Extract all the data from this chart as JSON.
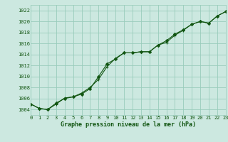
{
  "xlabel": "Graphe pression niveau de la mer (hPa)",
  "background_color": "#cce8e0",
  "grid_color": "#99ccbb",
  "line_color": "#115511",
  "x_min": 0,
  "x_max": 23,
  "y_min": 1003,
  "y_max": 1023,
  "y_ticks": [
    1004,
    1006,
    1008,
    1010,
    1012,
    1014,
    1016,
    1018,
    1020,
    1022
  ],
  "x_ticks": [
    0,
    1,
    2,
    3,
    4,
    5,
    6,
    7,
    8,
    9,
    10,
    11,
    12,
    13,
    14,
    15,
    16,
    17,
    18,
    19,
    20,
    21,
    22,
    23
  ],
  "series1_x": [
    0,
    1,
    2,
    3,
    4,
    5,
    6,
    7,
    8,
    9,
    10,
    11,
    12,
    13,
    14,
    15,
    16,
    17,
    18,
    19,
    20,
    21,
    22,
    23
  ],
  "series1_y": [
    1005.0,
    1004.2,
    1004.0,
    1005.0,
    1006.1,
    1006.3,
    1007.0,
    1008.0,
    1009.5,
    1011.8,
    1013.3,
    1014.3,
    1014.3,
    1014.5,
    1014.5,
    1015.7,
    1016.2,
    1017.5,
    1018.4,
    1019.5,
    1020.0,
    1019.7,
    1021.0,
    1021.8
  ],
  "series2_x": [
    0,
    1,
    2,
    3,
    4,
    5,
    6,
    7,
    8,
    9,
    10,
    11,
    12,
    13,
    14,
    15,
    16,
    17,
    18,
    19,
    20,
    21,
    22,
    23
  ],
  "series2_y": [
    1005.0,
    1004.2,
    1004.0,
    1005.2,
    1006.0,
    1006.3,
    1006.8,
    1007.8,
    1010.0,
    1012.3,
    1013.2,
    1014.3,
    1014.3,
    1014.5,
    1014.5,
    1015.7,
    1016.5,
    1017.7,
    1018.5,
    1019.5,
    1020.0,
    1019.7,
    1021.0,
    1021.8
  ],
  "tick_fontsize": 5,
  "xlabel_fontsize": 6
}
